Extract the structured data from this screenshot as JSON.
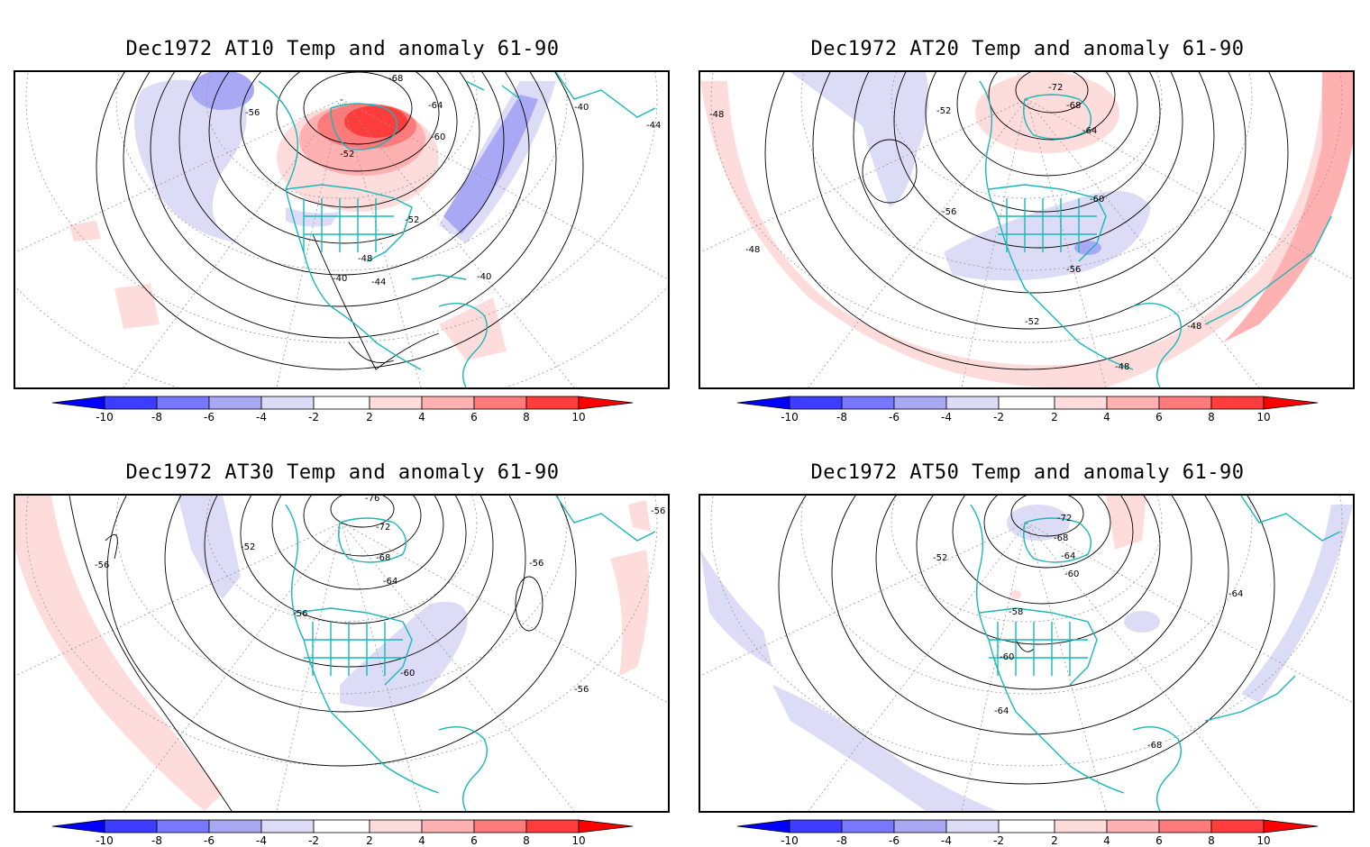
{
  "panels": [
    {
      "title": "Dec1972 AT10 Temp and anomaly 61-90",
      "contour_labels": [
        "-68",
        "-64",
        "-60",
        "-56",
        "-52",
        "-52",
        "-48",
        "-44",
        "-40",
        "-40",
        "-40",
        "-44"
      ]
    },
    {
      "title": "Dec1972 AT20 Temp and anomaly 61-90",
      "contour_labels": [
        "-72",
        "-68",
        "-64",
        "-60",
        "-56",
        "-56",
        "-52",
        "-52",
        "-48",
        "-48",
        "-48",
        "-48"
      ]
    },
    {
      "title": "Dec1972 AT30 Temp and anomaly 61-90",
      "contour_labels": [
        "-76",
        "-72",
        "-68",
        "-64",
        "-60",
        "-56",
        "-56",
        "-56",
        "-56",
        "-52",
        "-56"
      ]
    },
    {
      "title": "Dec1972 AT50 Temp and anomaly 61-90",
      "contour_labels": [
        "-72",
        "-68",
        "-64",
        "-60",
        "-58",
        "-60",
        "-64",
        "-64",
        "-68",
        "-52"
      ]
    }
  ],
  "colorbar": {
    "ticks": [
      "-10",
      "-8",
      "-6",
      "-4",
      "-2",
      "2",
      "4",
      "6",
      "8",
      "10"
    ],
    "colors": {
      "neg_10": "#0000ff",
      "neg_8": "#3d3dff",
      "neg_6": "#7878ff",
      "neg_4": "#a8a8f5",
      "neg_2": "#dcdcf7",
      "zero": "#ffffff",
      "pos_2": "#ffdcdc",
      "pos_4": "#ffb0b0",
      "pos_6": "#ff7a7a",
      "pos_8": "#ff3d3d",
      "pos_10": "#ff0000"
    }
  },
  "coastline_color": "#17b8b8"
}
